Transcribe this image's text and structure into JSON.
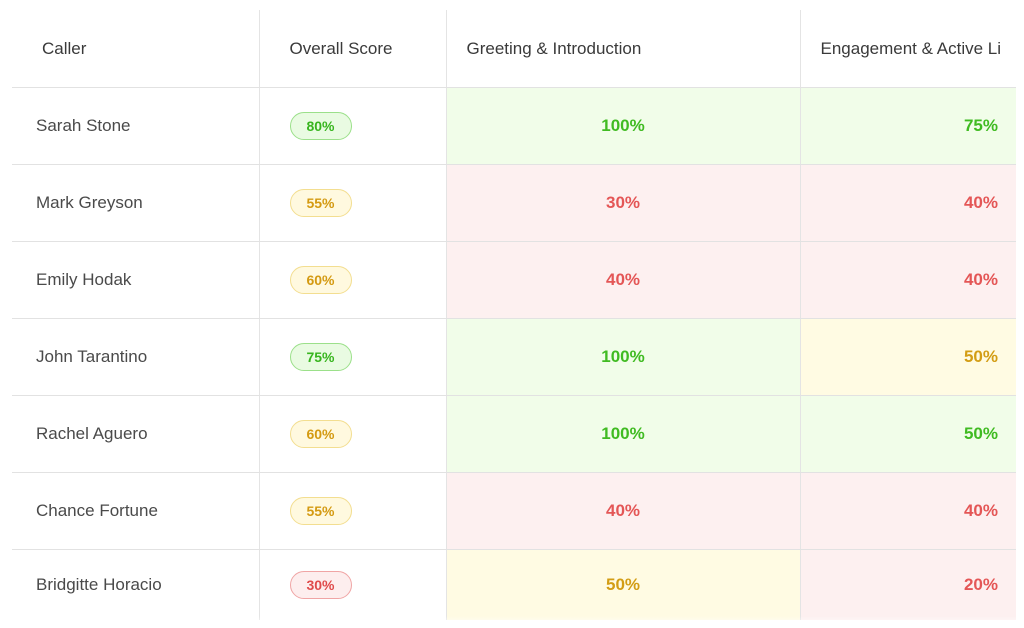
{
  "columns": {
    "caller": "Caller",
    "overall": "Overall Score",
    "greeting": "Greeting & Introduction",
    "engagement": "Engagement & Active Li"
  },
  "status_colors": {
    "good": "#40bb22",
    "mid": "#d39d15",
    "bad": "#e45656"
  },
  "rows": [
    {
      "caller": "Sarah Stone",
      "overall": "80%",
      "overall_status": "good",
      "greeting": "100%",
      "greeting_status": "good",
      "engagement": "75%",
      "engagement_status": "good"
    },
    {
      "caller": "Mark Greyson",
      "overall": "55%",
      "overall_status": "mid",
      "greeting": "30%",
      "greeting_status": "bad",
      "engagement": "40%",
      "engagement_status": "bad"
    },
    {
      "caller": "Emily Hodak",
      "overall": "60%",
      "overall_status": "mid",
      "greeting": "40%",
      "greeting_status": "bad",
      "engagement": "40%",
      "engagement_status": "bad"
    },
    {
      "caller": "John Tarantino",
      "overall": "75%",
      "overall_status": "good",
      "greeting": "100%",
      "greeting_status": "good",
      "engagement": "50%",
      "engagement_status": "mid"
    },
    {
      "caller": "Rachel Aguero",
      "overall": "60%",
      "overall_status": "mid",
      "greeting": "100%",
      "greeting_status": "good",
      "engagement": "50%",
      "engagement_status": "good"
    },
    {
      "caller": "Chance Fortune",
      "overall": "55%",
      "overall_status": "mid",
      "greeting": "40%",
      "greeting_status": "bad",
      "engagement": "40%",
      "engagement_status": "bad"
    },
    {
      "caller": "Bridgitte Horacio",
      "overall": "30%",
      "overall_status": "bad",
      "greeting": "50%",
      "greeting_status": "mid",
      "engagement": "20%",
      "engagement_status": "bad"
    }
  ]
}
